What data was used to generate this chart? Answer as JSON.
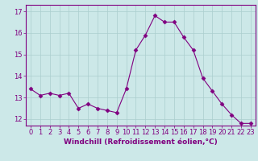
{
  "x": [
    0,
    1,
    2,
    3,
    4,
    5,
    6,
    7,
    8,
    9,
    10,
    11,
    12,
    13,
    14,
    15,
    16,
    17,
    18,
    19,
    20,
    21,
    22,
    23
  ],
  "y": [
    13.4,
    13.1,
    13.2,
    13.1,
    13.2,
    12.5,
    12.7,
    12.5,
    12.4,
    12.3,
    13.4,
    15.2,
    15.9,
    16.8,
    16.5,
    16.5,
    15.8,
    15.2,
    13.9,
    13.3,
    12.7,
    12.2,
    11.8,
    11.8
  ],
  "line_color": "#800080",
  "marker": "D",
  "marker_size": 2.5,
  "bg_color": "#cce8e8",
  "grid_color": "#aacece",
  "xlabel": "Windchill (Refroidissement éolien,°C)",
  "xticks": [
    0,
    1,
    2,
    3,
    4,
    5,
    6,
    7,
    8,
    9,
    10,
    11,
    12,
    13,
    14,
    15,
    16,
    17,
    18,
    19,
    20,
    21,
    22,
    23
  ],
  "yticks": [
    12,
    13,
    14,
    15,
    16,
    17
  ],
  "ylim": [
    11.7,
    17.3
  ],
  "xlim": [
    -0.5,
    23.5
  ],
  "xlabel_fontsize": 6.5,
  "tick_fontsize": 6.0,
  "label_color": "#800080",
  "axis_color": "#800080",
  "linewidth": 0.8
}
